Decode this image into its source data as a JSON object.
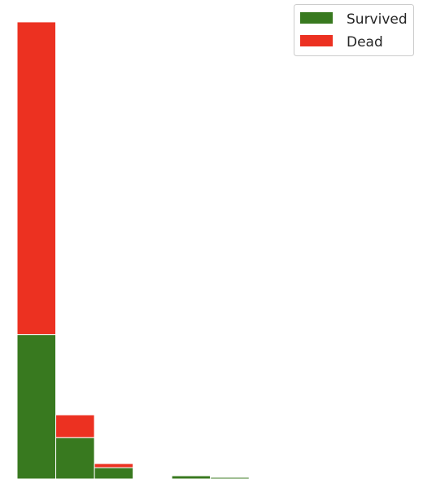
{
  "chart_data": {
    "type": "bar",
    "stacked": true,
    "histogram": true,
    "bin_edges": [
      0,
      1,
      2,
      3,
      4,
      5,
      6,
      7,
      8,
      9,
      10,
      11
    ],
    "ylim": [
      0,
      590
    ],
    "grid": false,
    "legend_placement": "top-right",
    "series": [
      {
        "name": "Survived",
        "color": "#38791f",
        "values": [
          178,
          51,
          14,
          0,
          4,
          2,
          0,
          0,
          0,
          0,
          0
        ]
      },
      {
        "name": "Dead",
        "color": "#ec3121",
        "values": [
          385,
          28,
          5,
          0,
          0,
          1,
          0,
          0,
          0,
          0,
          0
        ]
      }
    ]
  }
}
